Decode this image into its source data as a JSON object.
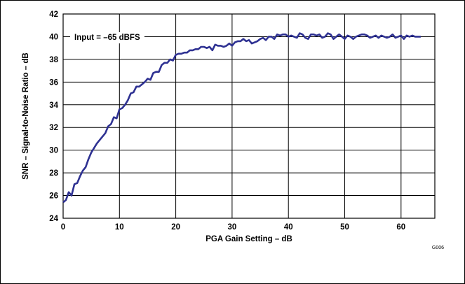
{
  "chart_data": {
    "type": "line",
    "title": "",
    "xlabel": "PGA Gain Setting – dB",
    "ylabel": "SNR – Signal-to-Noise Ratio – dB",
    "xlim": [
      0,
      66
    ],
    "ylim": [
      24,
      42
    ],
    "xticks": [
      0,
      10,
      20,
      30,
      40,
      50,
      60
    ],
    "yticks": [
      24,
      26,
      28,
      30,
      32,
      34,
      36,
      38,
      40,
      42
    ],
    "grid": true,
    "annotation": "Input = –65 dBFS",
    "figure_id": "G006",
    "line_color": "#2e3192",
    "series": [
      {
        "x": [
          0,
          0.5,
          1,
          1.5,
          2,
          2.5,
          3,
          3.5,
          4,
          4.5,
          5,
          5.5,
          6,
          6.5,
          7,
          7.5,
          8,
          8.5,
          9,
          9.5,
          10,
          10.5,
          11,
          11.5,
          12,
          12.5,
          13,
          13.5,
          14,
          14.5,
          15,
          15.5,
          16,
          16.5,
          17,
          17.5,
          18,
          18.5,
          19,
          19.5,
          20,
          20.5,
          21,
          21.5,
          22,
          22.5,
          23,
          23.5,
          24,
          24.5,
          25,
          25.5,
          26,
          26.5,
          27,
          27.5,
          28,
          28.5,
          29,
          29.5,
          30,
          30.5,
          31,
          31.5,
          32,
          32.5,
          33,
          33.5,
          34,
          34.5,
          35,
          35.5,
          36,
          36.5,
          37,
          37.5,
          38,
          38.5,
          39,
          39.5,
          40,
          40.5,
          41,
          41.5,
          42,
          42.5,
          43,
          43.5,
          44,
          44.5,
          45,
          45.5,
          46,
          46.5,
          47,
          47.5,
          48,
          48.5,
          49,
          49.5,
          50,
          50.5,
          51,
          51.5,
          52,
          52.5,
          53,
          53.5,
          54,
          54.5,
          55,
          55.5,
          56,
          56.5,
          57,
          57.5,
          58,
          58.5,
          59,
          59.5,
          60,
          60.5,
          61,
          61.5,
          62,
          62.5,
          63,
          63.5
        ],
        "values": [
          25.4,
          25.6,
          26.3,
          26.0,
          27.0,
          27.1,
          27.7,
          28.2,
          28.5,
          29.2,
          29.8,
          30.2,
          30.6,
          30.9,
          31.2,
          31.5,
          32.1,
          32.3,
          32.9,
          32.8,
          33.6,
          33.7,
          34.0,
          34.4,
          35.0,
          35.1,
          35.6,
          35.6,
          35.8,
          36.0,
          36.3,
          36.2,
          36.8,
          36.9,
          36.9,
          37.5,
          37.7,
          37.7,
          38.0,
          37.9,
          38.4,
          38.5,
          38.5,
          38.6,
          38.6,
          38.8,
          38.8,
          38.9,
          38.9,
          39.1,
          39.1,
          39.0,
          39.1,
          38.8,
          39.3,
          39.2,
          39.2,
          39.1,
          39.2,
          39.4,
          39.2,
          39.5,
          39.6,
          39.6,
          39.8,
          39.6,
          39.7,
          39.4,
          39.5,
          39.6,
          39.8,
          39.9,
          39.7,
          40.0,
          40.0,
          39.8,
          40.2,
          40.1,
          40.2,
          40.2,
          40.0,
          40.1,
          40.0,
          39.9,
          40.3,
          40.2,
          39.9,
          39.8,
          40.2,
          40.2,
          40.1,
          40.2,
          39.9,
          40.0,
          40.3,
          40.2,
          39.8,
          40.0,
          40.2,
          40.0,
          39.8,
          40.1,
          40.0,
          39.8,
          40.0,
          40.1,
          40.2,
          40.2,
          40.1,
          39.9,
          40.0,
          40.1,
          39.9,
          40.1,
          40.0,
          39.9,
          40.0,
          40.2,
          39.9,
          40.0,
          40.1,
          39.8,
          40.1,
          40.0,
          40.1,
          40.0,
          40.0,
          40.0
        ]
      }
    ]
  }
}
